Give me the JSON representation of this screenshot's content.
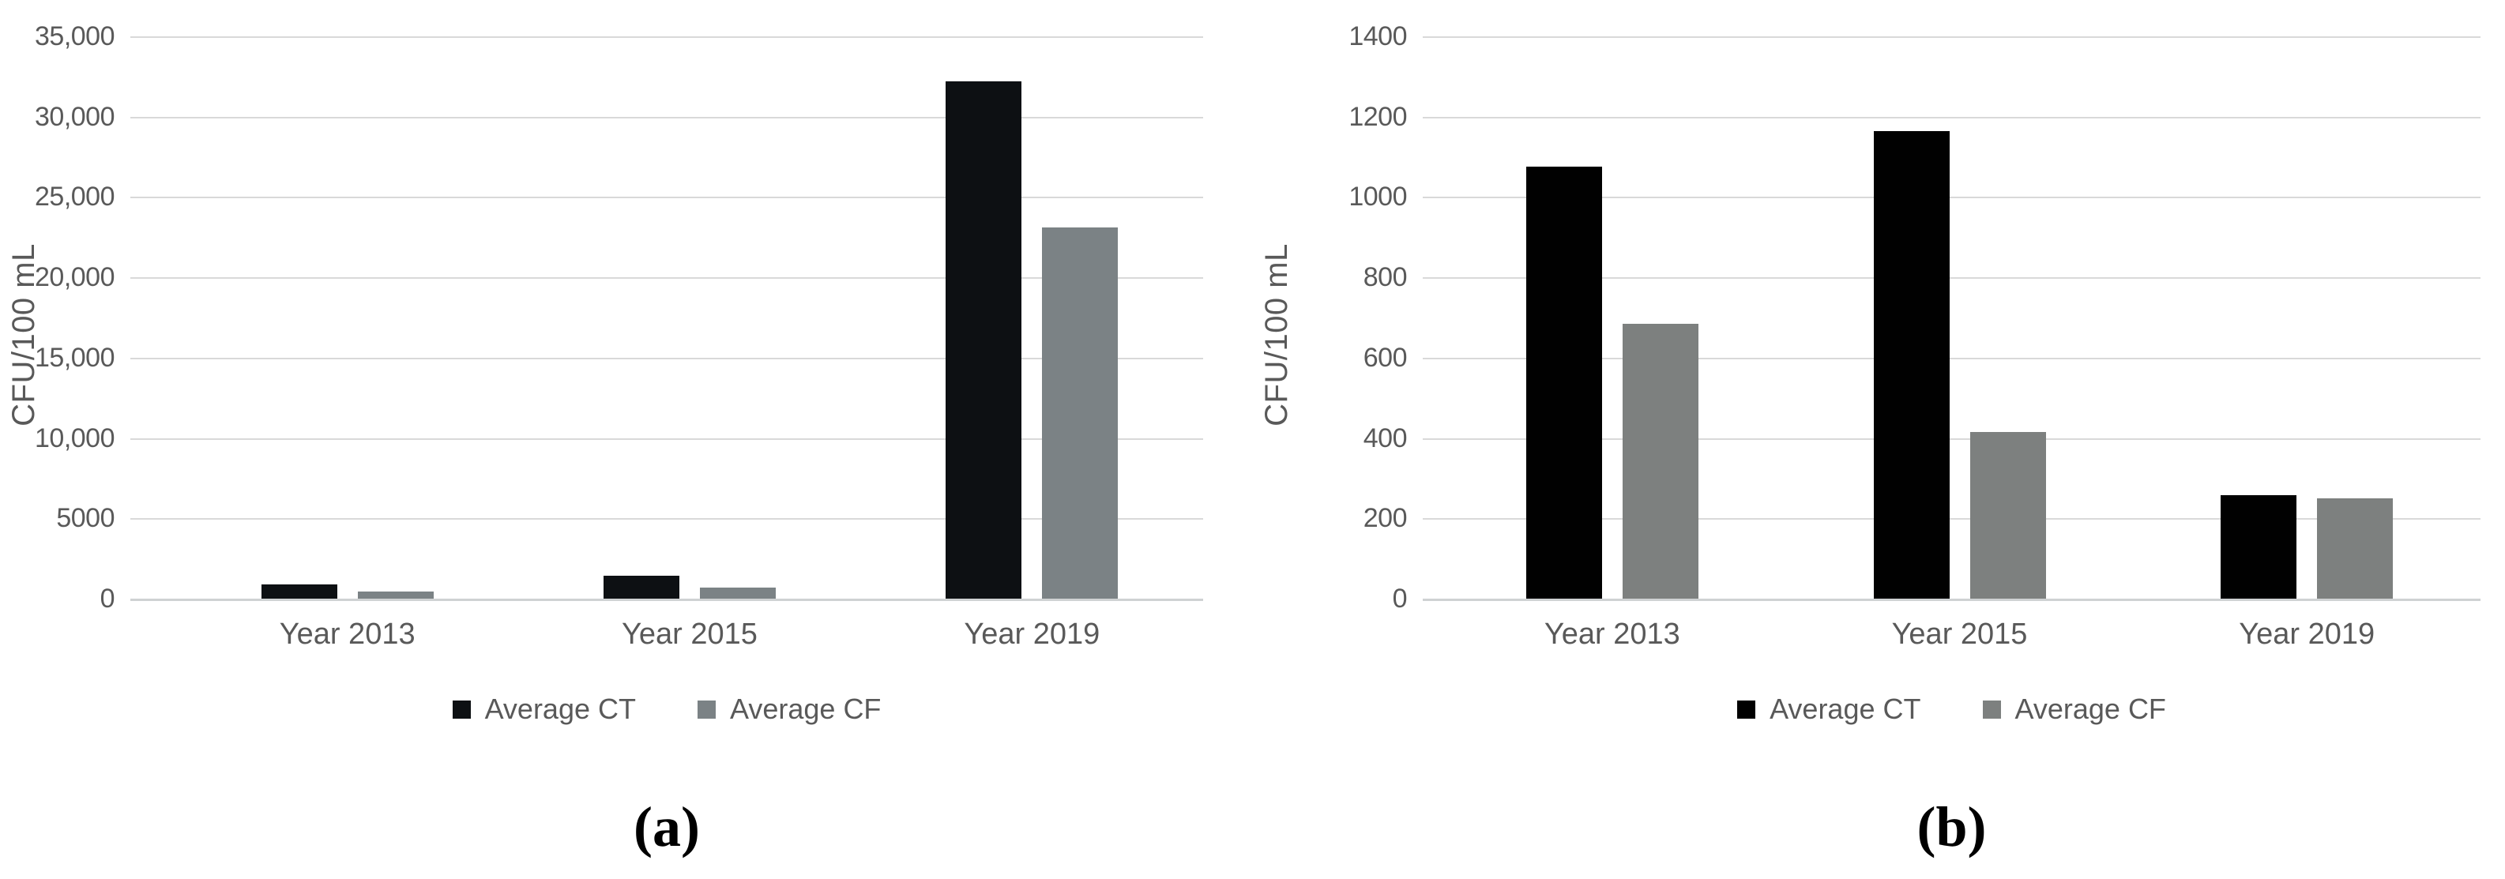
{
  "figure": {
    "background": "#ffffff",
    "text_color": "#595959",
    "gridline_color": "#d9d9d9",
    "axis_line_color": "#cfd2d3"
  },
  "chart_data": [
    {
      "type": "bar",
      "panel": "a",
      "caption": "(a)",
      "title": "",
      "xlabel": "",
      "ylabel": "CFU/100 mL",
      "ylim": [
        0,
        35000
      ],
      "grid": true,
      "legend_position": "bottom",
      "y_tick_labels": [
        "35,000",
        "30,000",
        "25,000",
        "20,000",
        "15,000",
        "10,000",
        "5000",
        "0"
      ],
      "categories": [
        "Year 2013",
        "Year 2015",
        "Year 2019"
      ],
      "series": [
        {
          "name": "Average CT",
          "color": "#0d1013",
          "values": [
            900,
            1450,
            32200
          ]
        },
        {
          "name": "Average CF",
          "color": "#7b8285",
          "values": [
            440,
            700,
            23100
          ]
        }
      ]
    },
    {
      "type": "bar",
      "panel": "b",
      "caption": "(b)",
      "title": "",
      "xlabel": "",
      "ylabel": "CFU/100 mL",
      "ylim": [
        0,
        1400
      ],
      "grid": true,
      "legend_position": "bottom",
      "y_tick_labels": [
        "1400",
        "1200",
        "1000",
        "800",
        "600",
        "400",
        "200",
        "0"
      ],
      "categories": [
        "Year 2013",
        "Year 2015",
        "Year 2019"
      ],
      "series": [
        {
          "name": "Average CT",
          "color": "#010101",
          "values": [
            1075,
            1165,
            257
          ]
        },
        {
          "name": "Average CF",
          "color": "#7d807f",
          "values": [
            685,
            415,
            250
          ]
        }
      ]
    }
  ]
}
